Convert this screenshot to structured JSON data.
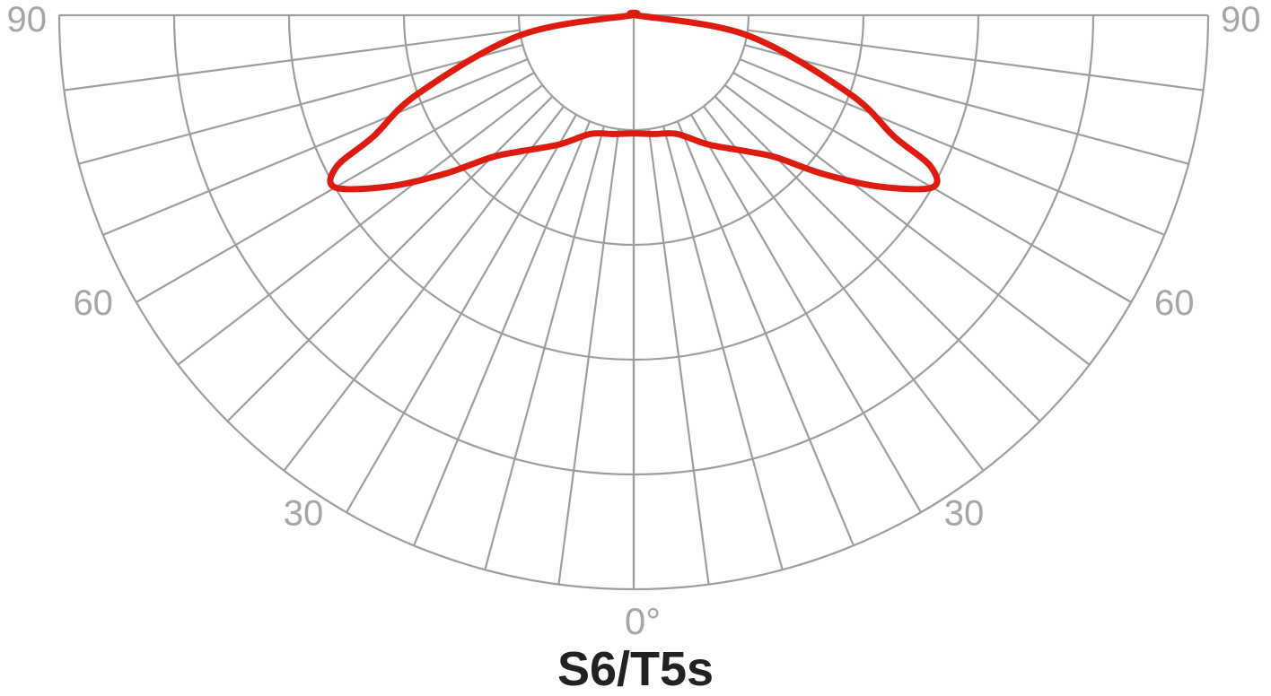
{
  "chart_data": {
    "type": "polar",
    "title": "S6/T5s",
    "angle_labels": [
      {
        "side": "left",
        "angle": 90,
        "text": "90"
      },
      {
        "side": "left",
        "angle": 60,
        "text": "60"
      },
      {
        "side": "left",
        "angle": 30,
        "text": "30"
      },
      {
        "side": "center",
        "angle": 0,
        "text": "0°"
      },
      {
        "side": "right",
        "angle": 30,
        "text": "30"
      },
      {
        "side": "right",
        "angle": 60,
        "text": "60"
      },
      {
        "side": "right",
        "angle": 90,
        "text": "90"
      }
    ],
    "radial_range": [
      0,
      5
    ],
    "ring_values": [
      1,
      2,
      3,
      4,
      5
    ],
    "spoke_step_degrees": 7.5,
    "grid": true,
    "line_color": "#dd1b10",
    "grid_color": "#9e9e9e",
    "series": [
      {
        "values_angle_deg": [
          -90,
          -80,
          -70,
          -65,
          -63,
          -60,
          -55,
          -50,
          -45,
          -40,
          -30,
          -20,
          -10,
          0,
          10,
          20,
          30,
          40,
          45,
          50,
          55,
          60,
          63,
          65,
          70,
          80,
          90
        ],
        "values_r": [
          0.02,
          1.0,
          2.0,
          2.5,
          2.9,
          3.0,
          2.6,
          2.15,
          1.75,
          1.55,
          1.3,
          1.1,
          1.05,
          1.03,
          1.05,
          1.1,
          1.3,
          1.55,
          1.75,
          2.15,
          2.6,
          3.0,
          2.9,
          2.5,
          2.0,
          1.0,
          0.02
        ]
      }
    ]
  }
}
